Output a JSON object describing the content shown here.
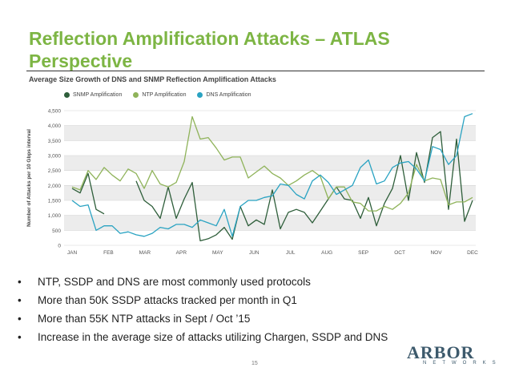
{
  "slide": {
    "title": "Reflection Amplification Attacks – ATLAS Perspective",
    "page_number": "15",
    "bullets": [
      "NTP, SSDP and DNS are most commonly used protocols",
      "More than 50K SSDP attacks tracked per month in Q1",
      "More than 55K NTP attacks in Sept / Oct ’15",
      "Increase in the average size of attacks utilizing Chargen, SSDP and DNS"
    ],
    "logo": {
      "main": "ARBOR",
      "sub": "NETWORKS"
    }
  },
  "colors": {
    "title": "#7db544",
    "snmp": "#2e5e3a",
    "ntp": "#8fb35a",
    "dns": "#2aa3c2"
  },
  "chart_data": {
    "type": "line",
    "title": "Average Size Growth of DNS and SNMP Reflection Amplification Attacks",
    "ylabel": "Number of Attacks per 10 Gbps interval",
    "xlabel": "",
    "ylim": [
      0,
      4500
    ],
    "yticks": [
      "0",
      "500",
      "1,000",
      "1,500",
      "2,000",
      "2,500",
      "3,000",
      "3,500",
      "4,000",
      "4,500"
    ],
    "month_labels": [
      "JAN",
      "FEB",
      "MAR",
      "APR",
      "MAY",
      "JUN",
      "JUL",
      "AUG",
      "SEP",
      "OCT",
      "NOV",
      "DEC"
    ],
    "series": [
      {
        "name": "SNMP Amplification",
        "key": "snmp",
        "values": [
          1900,
          1750,
          2400,
          1200,
          1050,
          null,
          null,
          null,
          2150,
          1500,
          1300,
          900,
          1950,
          900,
          1550,
          2100,
          150,
          220,
          350,
          600,
          200,
          1300,
          650,
          850,
          700,
          1850,
          550,
          1100,
          1200,
          1100,
          750,
          1150,
          1550,
          1950,
          1550,
          1500,
          900,
          1600,
          650,
          1400,
          1900,
          3000,
          1500,
          3100,
          2100,
          3600,
          3800,
          1200,
          3550,
          800,
          1500
        ]
      },
      {
        "name": "NTP Amplification",
        "key": "ntp",
        "values": [
          1950,
          1850,
          2500,
          2200,
          2600,
          2350,
          2150,
          2550,
          2400,
          1900,
          2500,
          2050,
          1950,
          2100,
          2800,
          4300,
          3550,
          3600,
          3250,
          2850,
          2950,
          2950,
          2250,
          2450,
          2650,
          2400,
          2250,
          2000,
          2150,
          2350,
          2500,
          2300,
          1550,
          1950,
          1950,
          1450,
          1400,
          1150,
          1150,
          1300,
          1200,
          1400,
          1750,
          2700,
          2150,
          2250,
          2200,
          1350,
          1450,
          1450,
          1600
        ]
      },
      {
        "name": "DNS Amplification",
        "key": "dns",
        "values": [
          1500,
          1300,
          1350,
          500,
          650,
          650,
          400,
          450,
          350,
          300,
          400,
          600,
          550,
          700,
          700,
          600,
          850,
          750,
          650,
          1200,
          300,
          1300,
          1500,
          1500,
          1600,
          1650,
          2050,
          2000,
          1700,
          1550,
          2150,
          2350,
          2100,
          1700,
          1850,
          2000,
          2600,
          2850,
          2050,
          2150,
          2600,
          2750,
          2800,
          2550,
          2150,
          3300,
          3200,
          2700,
          3000,
          4300,
          4400
        ]
      }
    ]
  }
}
